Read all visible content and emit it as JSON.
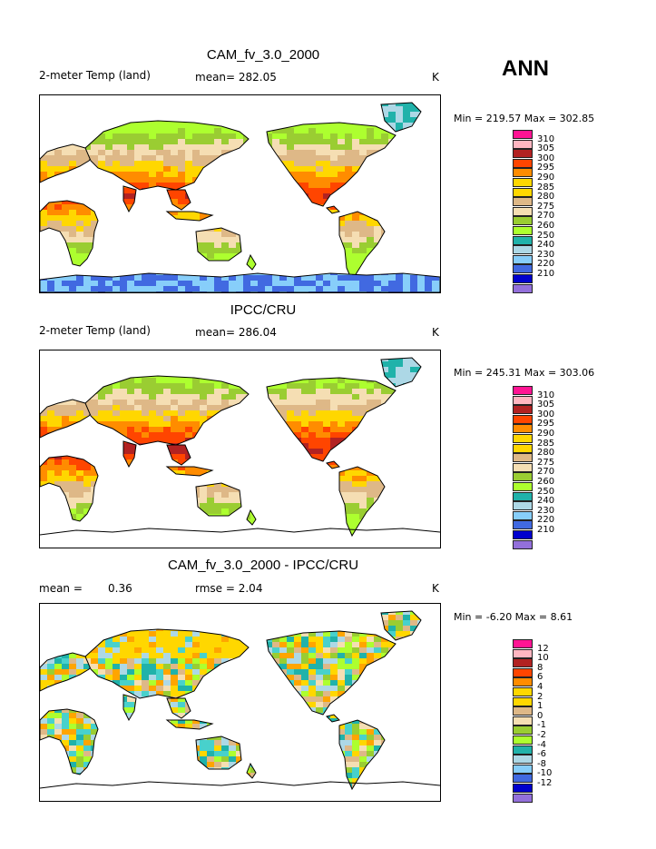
{
  "season": "ANN",
  "colors": {
    "abs": [
      "#ff1493",
      "#ffb6c1",
      "#b22222",
      "#ff4500",
      "#ff8c00",
      "#ffa500",
      "#ffd700",
      "#deb887",
      "#f5deb3",
      "#9acd32",
      "#adff2f",
      "#20b2aa",
      "#48d1cc",
      "#add8e6",
      "#87cefa",
      "#4169e1",
      "#0000cd",
      "#9370db"
    ],
    "diff": [
      "#ff1493",
      "#ffb6c1",
      "#b22222",
      "#ff4500",
      "#ff8c00",
      "#ffa500",
      "#ffd700",
      "#deb887",
      "#f5deb3",
      "#9acd32",
      "#adff2f",
      "#20b2aa",
      "#48d1cc",
      "#add8e6",
      "#87cefa",
      "#4169e1",
      "#0000cd",
      "#9370db"
    ]
  },
  "panels": [
    {
      "title": "CAM_fv_3.0_2000",
      "variable": "2-meter Temp (land)",
      "stat1": "mean= 282.05",
      "stat2": "",
      "unit": "K",
      "minmax": "Min = 219.57 Max = 302.85",
      "legend_labels": [
        "310",
        "305",
        "300",
        "295",
        "290",
        "285",
        "280",
        "275",
        "270",
        "260",
        "250",
        "240",
        "230",
        "220",
        "210"
      ],
      "kind": "model"
    },
    {
      "title": "IPCC/CRU",
      "variable": "2-meter Temp (land)",
      "stat1": "mean= 286.04",
      "stat2": "",
      "unit": "K",
      "minmax": "Min = 245.31 Max = 303.06",
      "legend_labels": [
        "310",
        "305",
        "300",
        "295",
        "290",
        "285",
        "280",
        "275",
        "270",
        "260",
        "250",
        "240",
        "230",
        "220",
        "210"
      ],
      "kind": "obs"
    },
    {
      "title": "CAM_fv_3.0_2000 - IPCC/CRU",
      "variable": "mean =",
      "stat1": "0.36",
      "stat2": "rmse =    2.04",
      "unit": "K",
      "minmax": "Min =   -6.20 Max =    8.61",
      "legend_labels": [
        "12",
        "10",
        "8",
        "6",
        "4",
        "2",
        "1",
        "0",
        "-1",
        "-2",
        "-4",
        "-6",
        "-8",
        "-10",
        "-12"
      ],
      "kind": "diff"
    }
  ]
}
